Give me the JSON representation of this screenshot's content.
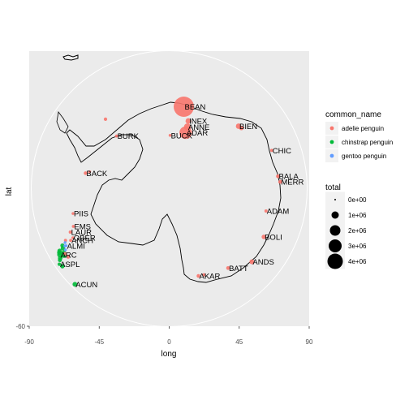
{
  "chart_data": {
    "type": "scatter",
    "projection": "south-polar",
    "xlabel": "long",
    "ylabel": "lat",
    "x_ticks": [
      "-90",
      "-45",
      "0",
      "45",
      "90"
    ],
    "y_ticks": [
      "-60"
    ],
    "xlim": [
      -90,
      90
    ],
    "ylim_bottom": -60,
    "grid": true,
    "legend_placement": "right",
    "colour_legend": {
      "title": "common_name",
      "entries": [
        {
          "label": "adelie penguin",
          "color": "#F8766D"
        },
        {
          "label": "chinstrap penguin",
          "color": "#00BA38"
        },
        {
          "label": "gentoo penguin",
          "color": "#619CFF"
        }
      ]
    },
    "size_legend": {
      "title": "total",
      "entries": [
        "0e+00",
        "1e+06",
        "2e+06",
        "3e+06",
        "4e+06"
      ]
    },
    "sites": [
      {
        "name": "ACUN",
        "long": -44.6,
        "lat": -60.8
      },
      {
        "name": "ASPL",
        "long": -55.5,
        "lat": -61.0
      },
      {
        "name": "ARC",
        "long": -58.9,
        "lat": -62.2
      },
      {
        "name": "ALMI",
        "long": -61.0,
        "lat": -64.4
      },
      {
        "name": "ANCH",
        "long": -62.3,
        "lat": -65.8
      },
      {
        "name": "OBER",
        "long": -63.0,
        "lat": -66.5
      },
      {
        "name": "LAUR",
        "long": -66.3,
        "lat": -66.5
      },
      {
        "name": "EMS",
        "long": -68.5,
        "lat": -67.6
      },
      {
        "name": "PIIS",
        "long": -75.5,
        "lat": -68.4
      },
      {
        "name": "BACK",
        "long": -100.5,
        "lat": -71.5
      },
      {
        "name": "BURK",
        "long": -135.0,
        "lat": -73.8
      },
      {
        "name": "BEAN",
        "long": 169.9,
        "lat": -71.9
      },
      {
        "name": "INEX",
        "long": 164.2,
        "lat": -74.7
      },
      {
        "name": "ANNE",
        "long": 163.6,
        "lat": -76.0
      },
      {
        "name": "ADAR",
        "long": 163.6,
        "lat": -77.3
      },
      {
        "name": "BUCK",
        "long": 179.0,
        "lat": -78.4
      },
      {
        "name": "BIEN",
        "long": 132.0,
        "lat": -69.7
      },
      {
        "name": "CHIC",
        "long": 110.5,
        "lat": -66.2
      },
      {
        "name": "BALA",
        "long": 96.5,
        "lat": -66.2
      },
      {
        "name": "MERR",
        "long": 93.5,
        "lat": -65.8
      },
      {
        "name": "ADAM",
        "long": 77.0,
        "lat": -68.4
      },
      {
        "name": "BOLI",
        "long": 63.0,
        "lat": -66.9
      },
      {
        "name": "ANDS",
        "long": 48.5,
        "lat": -66.0
      },
      {
        "name": "BATT",
        "long": 36.6,
        "lat": -68.5
      },
      {
        "name": "AKAR",
        "long": 18.5,
        "lat": -70.0
      }
    ],
    "points": [
      {
        "long": -44.6,
        "lat": -60.8,
        "species": "chinstrap penguin",
        "total": 120000
      },
      {
        "long": -55.5,
        "lat": -61.0,
        "species": "chinstrap penguin",
        "total": 40000
      },
      {
        "long": -54.0,
        "lat": -61.3,
        "species": "chinstrap penguin",
        "total": 90000
      },
      {
        "long": -56.8,
        "lat": -61.6,
        "species": "chinstrap penguin",
        "total": 70000
      },
      {
        "long": -57.5,
        "lat": -61.9,
        "species": "chinstrap penguin",
        "total": 110000
      },
      {
        "long": -58.9,
        "lat": -62.2,
        "species": "chinstrap penguin",
        "total": 160000
      },
      {
        "long": -59.8,
        "lat": -62.4,
        "species": "chinstrap penguin",
        "total": 130000
      },
      {
        "long": -60.5,
        "lat": -62.6,
        "species": "chinstrap penguin",
        "total": 90000
      },
      {
        "long": -57.6,
        "lat": -62.9,
        "species": "chinstrap penguin",
        "total": 150000
      },
      {
        "long": -58.8,
        "lat": -63.2,
        "species": "chinstrap penguin",
        "total": 110000
      },
      {
        "long": -60.7,
        "lat": -63.5,
        "species": "chinstrap penguin",
        "total": 100000
      },
      {
        "long": -62.0,
        "lat": -63.7,
        "species": "chinstrap penguin",
        "total": 80000
      },
      {
        "long": -59.5,
        "lat": -63.8,
        "species": "gentoo penguin",
        "total": 25000
      },
      {
        "long": -61.2,
        "lat": -64.1,
        "species": "gentoo penguin",
        "total": 20000
      },
      {
        "long": -61.0,
        "lat": -64.4,
        "species": "gentoo penguin",
        "total": 15000
      },
      {
        "long": -62.6,
        "lat": -64.5,
        "species": "gentoo penguin",
        "total": 20000
      },
      {
        "long": -58.0,
        "lat": -63.3,
        "species": "adelie penguin",
        "total": 50000
      },
      {
        "long": -56.0,
        "lat": -63.5,
        "species": "adelie penguin",
        "total": 60000
      },
      {
        "long": -63.5,
        "lat": -64.8,
        "species": "adelie penguin",
        "total": 30000
      },
      {
        "long": -62.3,
        "lat": -65.8,
        "species": "adelie penguin",
        "total": 25000
      },
      {
        "long": -63.0,
        "lat": -66.5,
        "species": "adelie penguin",
        "total": 20000
      },
      {
        "long": -66.3,
        "lat": -66.5,
        "species": "adelie penguin",
        "total": 30000
      },
      {
        "long": -68.5,
        "lat": -67.6,
        "species": "adelie penguin",
        "total": 25000
      },
      {
        "long": -75.5,
        "lat": -68.4,
        "species": "adelie penguin",
        "total": 20000
      },
      {
        "long": -100.5,
        "lat": -71.5,
        "species": "adelie penguin",
        "total": 50000
      },
      {
        "long": -102.0,
        "lat": -72.3,
        "species": "adelie penguin",
        "total": 20000
      },
      {
        "long": -137.5,
        "lat": -69.5,
        "species": "adelie penguin",
        "total": 40000
      },
      {
        "long": -135.0,
        "lat": -73.8,
        "species": "adelie penguin",
        "total": 25000
      },
      {
        "long": 169.9,
        "lat": -71.9,
        "species": "adelie penguin",
        "total": 4400000
      },
      {
        "long": 164.2,
        "lat": -74.7,
        "species": "adelie penguin",
        "total": 200000
      },
      {
        "long": 163.6,
        "lat": -76.0,
        "species": "adelie penguin",
        "total": 350000
      },
      {
        "long": 163.6,
        "lat": -77.3,
        "species": "adelie penguin",
        "total": 1500000
      },
      {
        "long": 179.0,
        "lat": -78.4,
        "species": "adelie penguin",
        "total": 20000
      },
      {
        "long": 132.0,
        "lat": -69.7,
        "species": "adelie penguin",
        "total": 180000
      },
      {
        "long": 130.0,
        "lat": -69.5,
        "species": "adelie penguin",
        "total": 100000
      },
      {
        "long": 110.5,
        "lat": -66.2,
        "species": "adelie penguin",
        "total": 30000
      },
      {
        "long": 96.5,
        "lat": -66.2,
        "species": "adelie penguin",
        "total": 60000
      },
      {
        "long": 93.5,
        "lat": -65.8,
        "species": "adelie penguin",
        "total": 70000
      },
      {
        "long": 77.0,
        "lat": -68.4,
        "species": "adelie penguin",
        "total": 30000
      },
      {
        "long": 63.0,
        "lat": -66.9,
        "species": "adelie penguin",
        "total": 100000
      },
      {
        "long": 48.5,
        "lat": -66.0,
        "species": "adelie penguin",
        "total": 130000
      },
      {
        "long": 36.6,
        "lat": -68.5,
        "species": "adelie penguin",
        "total": 60000
      },
      {
        "long": 22.0,
        "lat": -69.8,
        "species": "adelie penguin",
        "total": 30000
      },
      {
        "long": 18.5,
        "lat": -70.0,
        "species": "adelie penguin",
        "total": 50000
      }
    ]
  }
}
